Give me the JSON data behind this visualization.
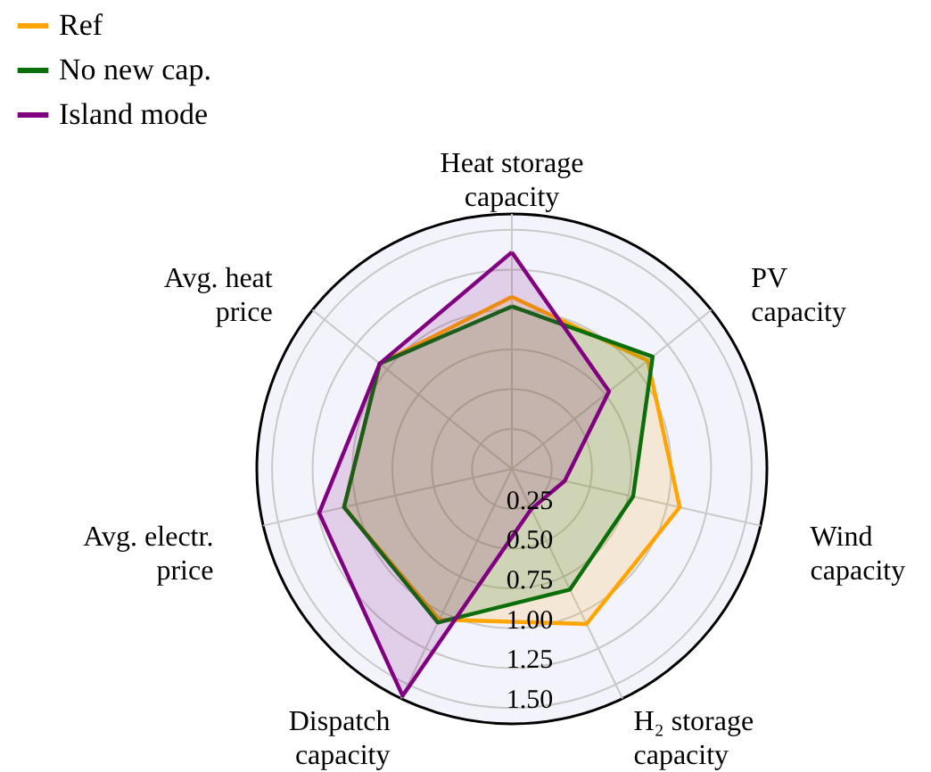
{
  "chart_data": {
    "type": "radar",
    "categories": [
      "Heat storage capacity",
      "PV capacity",
      "Wind capacity",
      "H₂ storage capacity",
      "Dispatch capacity",
      "Avg. electr. price",
      "Avg. heat price"
    ],
    "series": [
      {
        "name": "Ref",
        "color": "#ffa500",
        "values": [
          1.08,
          1.09,
          1.08,
          1.08,
          1.05,
          1.08,
          1.06
        ]
      },
      {
        "name": "No new cap.",
        "color": "#0a6e0a",
        "values": [
          1.02,
          1.13,
          0.78,
          0.84,
          1.07,
          1.08,
          1.06
        ]
      },
      {
        "name": "Island mode",
        "color": "#800080",
        "values": [
          1.36,
          0.78,
          0.34,
          0.28,
          1.58,
          1.24,
          1.06
        ]
      }
    ],
    "ylim": [
      0,
      1.6
    ],
    "yticks": [
      {
        "value": 0.25,
        "label": "0.25"
      },
      {
        "value": 0.5,
        "label": "0.50"
      },
      {
        "value": 0.75,
        "label": "0.75"
      },
      {
        "value": 1.0,
        "label": "1.00"
      },
      {
        "value": 1.25,
        "label": "1.25"
      },
      {
        "value": 1.5,
        "label": "1.50"
      }
    ],
    "grid": true,
    "legend": "top left"
  }
}
